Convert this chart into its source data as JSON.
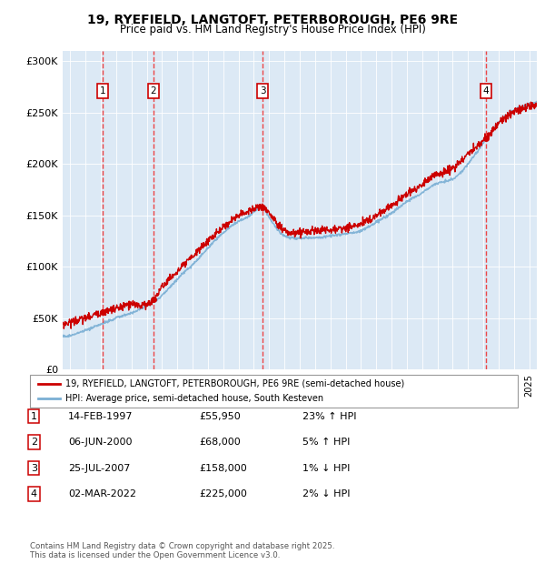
{
  "title": "19, RYEFIELD, LANGTOFT, PETERBOROUGH, PE6 9RE",
  "subtitle": "Price paid vs. HM Land Registry's House Price Index (HPI)",
  "property_label": "19, RYEFIELD, LANGTOFT, PETERBOROUGH, PE6 9RE (semi-detached house)",
  "hpi_label": "HPI: Average price, semi-detached house, South Kesteven",
  "footer": "Contains HM Land Registry data © Crown copyright and database right 2025.\nThis data is licensed under the Open Government Licence v3.0.",
  "transactions": [
    {
      "num": 1,
      "date": "14-FEB-1997",
      "price": 55950,
      "pct": "23%",
      "dir": "↑",
      "year": 1997.12
    },
    {
      "num": 2,
      "date": "06-JUN-2000",
      "price": 68000,
      "pct": "5%",
      "dir": "↑",
      "year": 2000.44
    },
    {
      "num": 3,
      "date": "25-JUL-2007",
      "price": 158000,
      "pct": "1%",
      "dir": "↓",
      "year": 2007.57
    },
    {
      "num": 4,
      "date": "02-MAR-2022",
      "price": 225000,
      "pct": "2%",
      "dir": "↓",
      "year": 2022.17
    }
  ],
  "property_color": "#cc0000",
  "hpi_color": "#7aafd4",
  "bg_color": "#dce9f5",
  "grid_color": "#ffffff",
  "dashed_color": "#ee3333",
  "ylim": [
    0,
    310000
  ],
  "yticks": [
    0,
    50000,
    100000,
    150000,
    200000,
    250000,
    300000
  ],
  "ytick_labels": [
    "£0",
    "£50K",
    "£100K",
    "£150K",
    "£200K",
    "£250K",
    "£300K"
  ],
  "xmin": 1994.5,
  "xmax": 2025.5
}
